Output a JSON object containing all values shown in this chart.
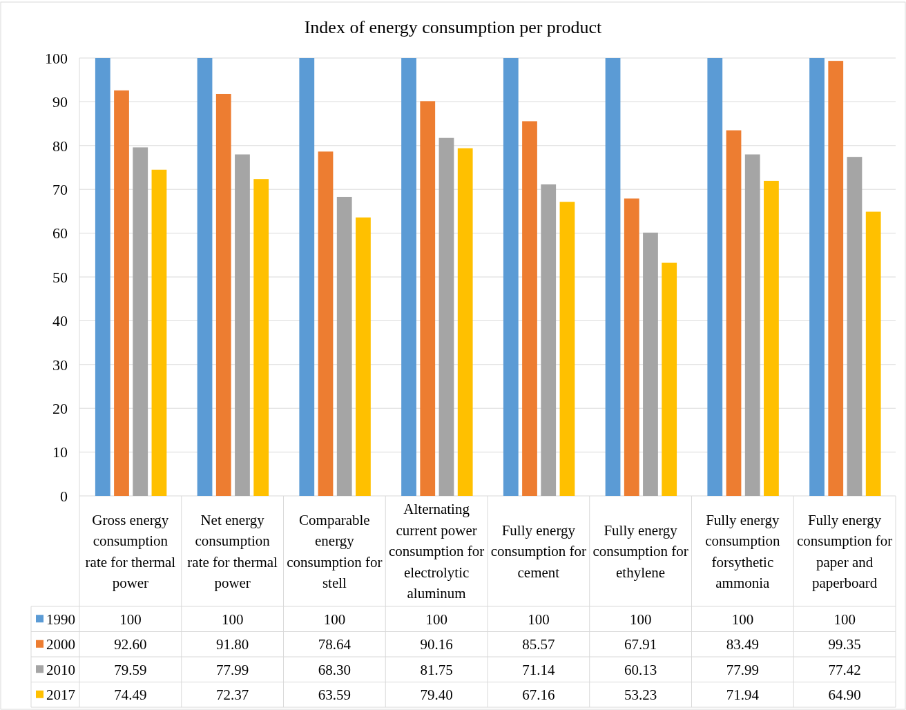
{
  "chart_data": {
    "type": "bar",
    "title": "Index of energy consumption per product",
    "categories": [
      "Gross energy consumption rate for thermal power",
      "Net energy consumption rate for thermal power",
      "Comparable energy consumption for stell",
      "Alternating current power consumption for electrolytic aluminum",
      "Fully energy consumption for cement",
      "Fully energy consumption for ethylene",
      "Fully energy consumption forsythetic ammonia",
      "Fully energy consumption for paper and paperboard"
    ],
    "series": [
      {
        "name": "1990",
        "color": "#5b9bd5",
        "values": [
          100,
          100,
          100,
          100,
          100,
          100,
          100,
          100
        ],
        "value_labels": [
          "100",
          "100",
          "100",
          "100",
          "100",
          "100",
          "100",
          "100"
        ]
      },
      {
        "name": "2000",
        "color": "#ed7d31",
        "values": [
          92.6,
          91.8,
          78.64,
          90.16,
          85.57,
          67.91,
          83.49,
          99.35
        ],
        "value_labels": [
          "92.60",
          "91.80",
          "78.64",
          "90.16",
          "85.57",
          "67.91",
          "83.49",
          "99.35"
        ]
      },
      {
        "name": "2010",
        "color": "#a5a5a5",
        "values": [
          79.59,
          77.99,
          68.3,
          81.75,
          71.14,
          60.13,
          77.99,
          77.42
        ],
        "value_labels": [
          "79.59",
          "77.99",
          "68.30",
          "81.75",
          "71.14",
          "60.13",
          "77.99",
          "77.42"
        ]
      },
      {
        "name": "2017",
        "color": "#ffc000",
        "values": [
          74.49,
          72.37,
          63.59,
          79.4,
          67.16,
          53.23,
          71.94,
          64.9
        ],
        "value_labels": [
          "74.49",
          "72.37",
          "63.59",
          "79.40",
          "67.16",
          "53.23",
          "71.94",
          "64.90"
        ]
      }
    ],
    "ylim": [
      0,
      100
    ],
    "yticks": [
      0,
      10,
      20,
      30,
      40,
      50,
      60,
      70,
      80,
      90,
      100
    ],
    "grid": "y",
    "legend": "bottom"
  }
}
